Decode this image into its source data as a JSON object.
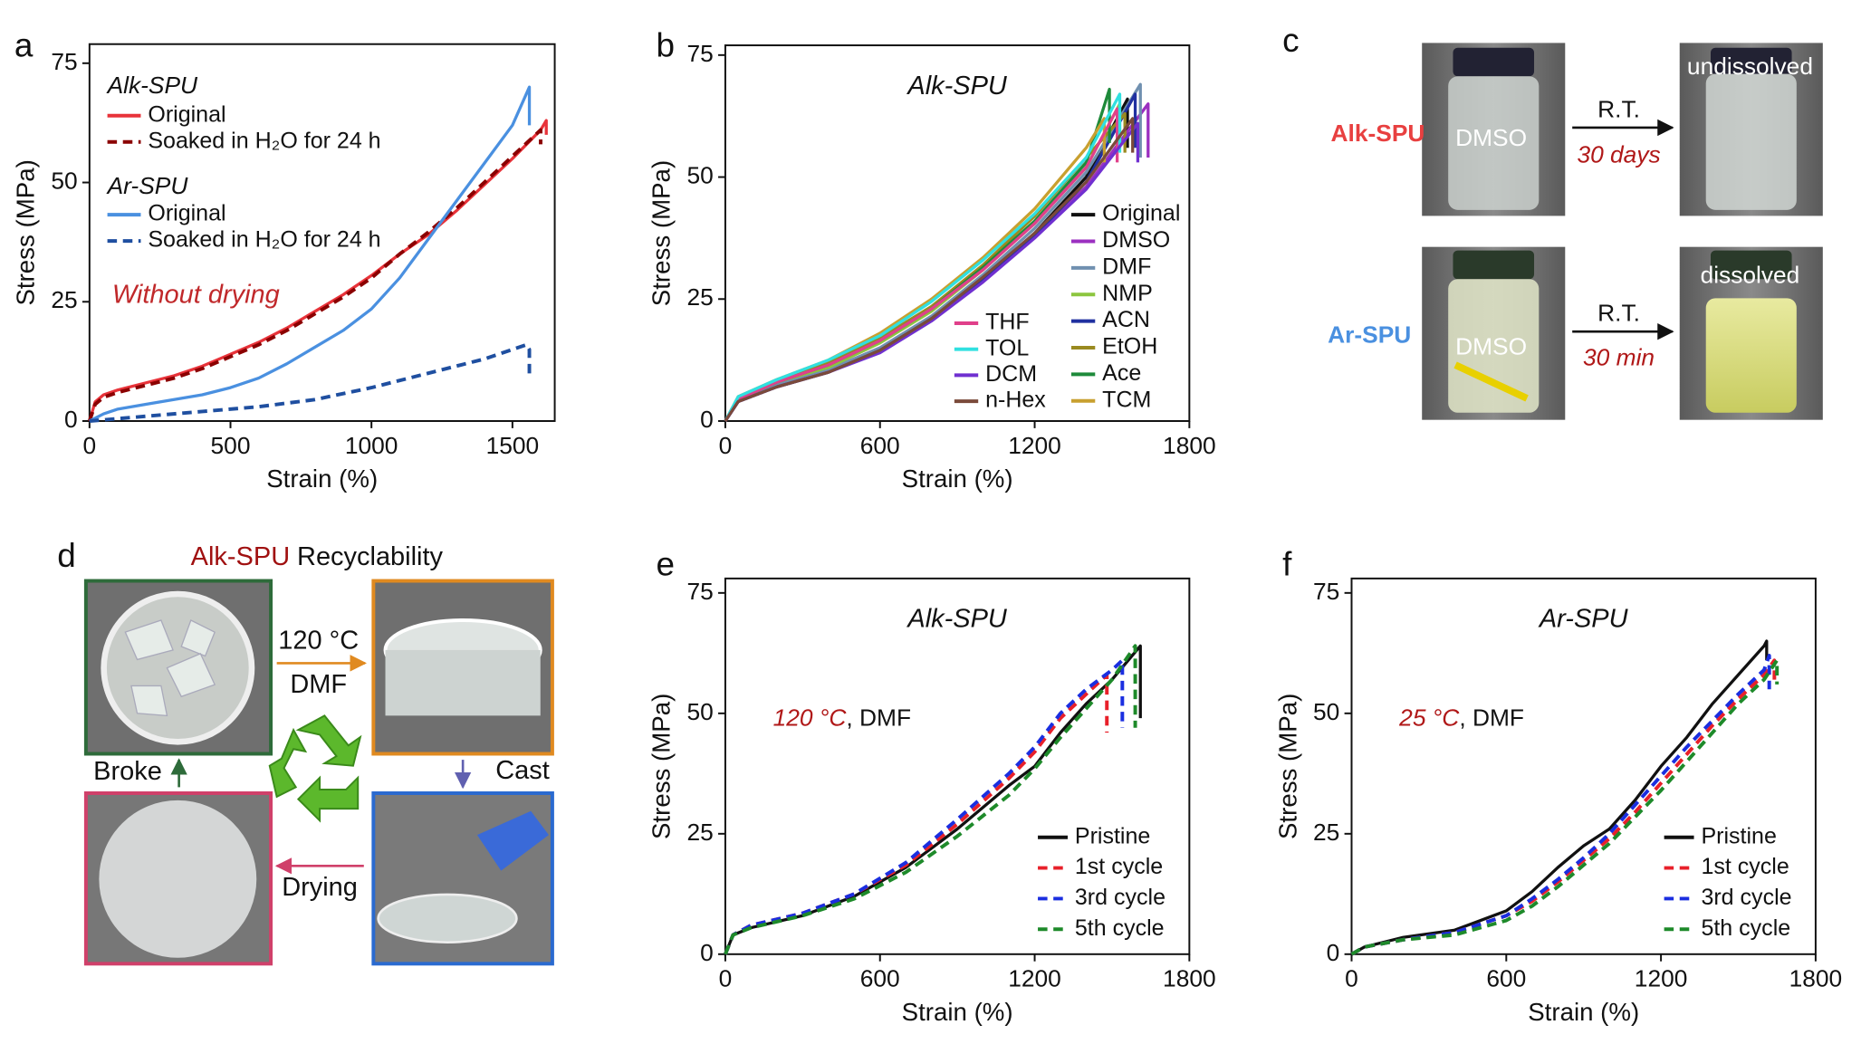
{
  "chart_data": [
    {
      "type": "line",
      "label": "a",
      "xlabel": "Strain (%)",
      "ylabel": "Stress (MPa)",
      "xlim": [
        0,
        1650
      ],
      "ylim": [
        0,
        79
      ],
      "xticks": [
        0,
        500,
        1000,
        1500
      ],
      "yticks": [
        0,
        25,
        50,
        75
      ],
      "legend_groups": [
        "Alk-SPU",
        "Ar-SPU"
      ],
      "annotation": "Without drying",
      "series": [
        {
          "name": "Original",
          "group": "Alk-SPU",
          "color": "#e8333a",
          "linestyle": "solid",
          "x": [
            0,
            20,
            50,
            100,
            200,
            300,
            400,
            500,
            600,
            700,
            800,
            900,
            1000,
            1100,
            1200,
            1300,
            1400,
            1500,
            1600,
            1620,
            1620
          ],
          "values": [
            0,
            4,
            5.5,
            6.5,
            8,
            9.5,
            11.5,
            14,
            16.5,
            19.5,
            23,
            26.5,
            30.5,
            35,
            39,
            44,
            49.5,
            55,
            61,
            63,
            60
          ]
        },
        {
          "name": "Soaked in H₂O for 24 h",
          "group": "Alk-SPU",
          "color": "#8b0000",
          "linestyle": "dashed",
          "x": [
            0,
            20,
            50,
            100,
            200,
            300,
            400,
            500,
            600,
            700,
            800,
            900,
            1000,
            1100,
            1200,
            1300,
            1400,
            1500,
            1600,
            1600
          ],
          "values": [
            0,
            3.5,
            5,
            6,
            7.5,
            9,
            11,
            13.5,
            16,
            19,
            22.5,
            26,
            30,
            35,
            39.5,
            44.5,
            50,
            55.5,
            61,
            58
          ]
        },
        {
          "name": "Original",
          "group": "Ar-SPU",
          "color": "#4a90e0",
          "linestyle": "solid",
          "x": [
            0,
            50,
            100,
            200,
            300,
            400,
            500,
            600,
            700,
            800,
            900,
            1000,
            1100,
            1200,
            1300,
            1400,
            1500,
            1560,
            1560
          ],
          "values": [
            0,
            1.5,
            2.5,
            3.5,
            4.5,
            5.5,
            7,
            9,
            12,
            15.5,
            19,
            23.5,
            30,
            38,
            46,
            54,
            62,
            70,
            62
          ]
        },
        {
          "name": "Soaked in H₂O for 24 h",
          "group": "Ar-SPU",
          "color": "#1f4fa0",
          "linestyle": "dashed",
          "x": [
            0,
            200,
            400,
            600,
            800,
            1000,
            1200,
            1400,
            1550,
            1560,
            1560
          ],
          "values": [
            0,
            1,
            2,
            3,
            4.5,
            7,
            10,
            13,
            16,
            15,
            9
          ]
        }
      ]
    },
    {
      "type": "line",
      "label": "b",
      "title": "Alk-SPU",
      "xlabel": "Strain (%)",
      "ylabel": "Stress (MPa)",
      "xlim": [
        0,
        1800
      ],
      "ylim": [
        0,
        77
      ],
      "xticks": [
        0,
        600,
        1200,
        1800
      ],
      "yticks": [
        0,
        25,
        50,
        75
      ],
      "series": [
        {
          "name": "Original",
          "color": "#111111",
          "linestyle": "solid",
          "x": [
            0,
            50,
            200,
            400,
            600,
            800,
            1000,
            1200,
            1400,
            1560,
            1560
          ],
          "values": [
            0,
            4,
            7,
            10,
            14.5,
            21,
            29,
            38.5,
            50,
            66,
            56
          ]
        },
        {
          "name": "DMSO",
          "color": "#9b30c0",
          "linestyle": "solid",
          "x": [
            0,
            50,
            200,
            400,
            600,
            800,
            1000,
            1200,
            1400,
            1640,
            1640
          ],
          "values": [
            0,
            4,
            7.5,
            10.5,
            15,
            21.5,
            29.5,
            38,
            48,
            65,
            54
          ]
        },
        {
          "name": "DMF",
          "color": "#7090b0",
          "linestyle": "solid",
          "x": [
            0,
            50,
            200,
            400,
            600,
            800,
            1000,
            1200,
            1400,
            1610,
            1610
          ],
          "values": [
            0,
            4.5,
            7.5,
            10.5,
            15,
            21.5,
            30,
            39.5,
            51,
            69,
            54
          ]
        },
        {
          "name": "NMP",
          "color": "#8cc63f",
          "linestyle": "solid",
          "x": [
            0,
            50,
            200,
            400,
            600,
            800,
            1000,
            1200,
            1400,
            1530,
            1530
          ],
          "values": [
            0,
            4.5,
            8,
            11,
            16,
            22.5,
            31,
            40.5,
            52,
            65,
            56
          ]
        },
        {
          "name": "ACN",
          "color": "#2030a0",
          "linestyle": "solid",
          "x": [
            0,
            50,
            200,
            400,
            600,
            800,
            1000,
            1200,
            1400,
            1590,
            1590
          ],
          "values": [
            0,
            4,
            7,
            10,
            14.5,
            21,
            29,
            38,
            49,
            67,
            56
          ]
        },
        {
          "name": "EtOH",
          "color": "#9a8a20",
          "linestyle": "solid",
          "x": [
            0,
            50,
            200,
            400,
            600,
            800,
            1000,
            1200,
            1400,
            1550,
            1550
          ],
          "values": [
            0,
            4.5,
            8,
            12,
            17,
            23.5,
            32,
            42,
            54,
            63,
            55
          ]
        },
        {
          "name": "Ace",
          "color": "#1e8a3a",
          "linestyle": "solid",
          "x": [
            0,
            50,
            200,
            400,
            600,
            800,
            1000,
            1200,
            1400,
            1490,
            1490
          ],
          "values": [
            0,
            4.5,
            8,
            11.5,
            16.5,
            23,
            31.5,
            41,
            53,
            68,
            57
          ]
        },
        {
          "name": "TCM",
          "color": "#c8a030",
          "linestyle": "solid",
          "x": [
            0,
            50,
            200,
            400,
            600,
            800,
            1000,
            1200,
            1400,
            1470,
            1470
          ],
          "values": [
            0,
            5,
            8.5,
            12.5,
            18,
            25,
            33.5,
            43.5,
            56,
            62,
            53
          ]
        },
        {
          "name": "THF",
          "color": "#e0408a",
          "linestyle": "solid",
          "x": [
            0,
            50,
            200,
            400,
            600,
            800,
            1000,
            1200,
            1400,
            1520,
            1520
          ],
          "values": [
            0,
            4.5,
            8,
            11.5,
            16.5,
            23,
            31,
            40.5,
            52,
            64,
            53
          ]
        },
        {
          "name": "TOL",
          "color": "#30e0e0",
          "linestyle": "solid",
          "x": [
            0,
            50,
            200,
            400,
            600,
            800,
            1000,
            1200,
            1400,
            1530,
            1530
          ],
          "values": [
            0,
            5,
            8.5,
            12.5,
            17.5,
            24.5,
            33,
            42.5,
            54,
            67,
            55
          ]
        },
        {
          "name": "DCM",
          "color": "#7030d0",
          "linestyle": "solid",
          "x": [
            0,
            50,
            200,
            400,
            600,
            800,
            1000,
            1200,
            1400,
            1600,
            1600
          ],
          "values": [
            0,
            4,
            7,
            10,
            14,
            20.5,
            28.5,
            37.5,
            47.5,
            61,
            53
          ]
        },
        {
          "name": "n-Hex",
          "color": "#7a4a3a",
          "linestyle": "solid",
          "x": [
            0,
            50,
            200,
            400,
            600,
            800,
            1000,
            1200,
            1400,
            1580,
            1580
          ],
          "values": [
            0,
            4,
            7,
            10,
            14.5,
            21,
            29.5,
            38.5,
            49,
            62,
            55
          ]
        }
      ]
    },
    {
      "type": "line",
      "label": "e",
      "title": "Alk-SPU",
      "xlabel": "Strain (%)",
      "ylabel": "Stress (MPa)",
      "xlim": [
        0,
        1800
      ],
      "ylim": [
        0,
        78
      ],
      "xticks": [
        0,
        600,
        1200,
        1800
      ],
      "yticks": [
        0,
        25,
        50,
        75
      ],
      "annotation": [
        "120 °C",
        ", DMF"
      ],
      "series": [
        {
          "name": "Pristine",
          "color": "#111111",
          "linestyle": "solid",
          "x": [
            0,
            30,
            100,
            300,
            500,
            700,
            900,
            1100,
            1200,
            1300,
            1400,
            1500,
            1610,
            1610
          ],
          "values": [
            0,
            4,
            5.5,
            8,
            12,
            18,
            26,
            35,
            39,
            46,
            52,
            57,
            64,
            49
          ]
        },
        {
          "name": "1st cycle",
          "color": "#e8202a",
          "linestyle": "dashed",
          "x": [
            0,
            30,
            100,
            300,
            500,
            700,
            900,
            1100,
            1200,
            1300,
            1400,
            1480,
            1480
          ],
          "values": [
            0,
            4,
            6,
            8.5,
            12.5,
            18.5,
            27,
            36.5,
            42,
            49,
            54,
            58,
            46
          ]
        },
        {
          "name": "3rd cycle",
          "color": "#1a2ee0",
          "linestyle": "dashed",
          "x": [
            0,
            30,
            100,
            300,
            500,
            700,
            900,
            1100,
            1200,
            1300,
            1400,
            1500,
            1540,
            1540
          ],
          "values": [
            0,
            4,
            6,
            8.5,
            12.5,
            19,
            28,
            37.5,
            43,
            50,
            55,
            59,
            61,
            47
          ]
        },
        {
          "name": "5th cycle",
          "color": "#1e8a2a",
          "linestyle": "dashed",
          "x": [
            0,
            30,
            100,
            300,
            500,
            700,
            900,
            1100,
            1200,
            1300,
            1400,
            1500,
            1590,
            1590
          ],
          "values": [
            0,
            4,
            5.5,
            8,
            11.5,
            17,
            24.5,
            33,
            38.5,
            45,
            51,
            57,
            64,
            47
          ]
        }
      ]
    },
    {
      "type": "line",
      "label": "f",
      "title": "Ar-SPU",
      "xlabel": "Strain (%)",
      "ylabel": "Stress (MPa)",
      "xlim": [
        0,
        1800
      ],
      "ylim": [
        0,
        78
      ],
      "xticks": [
        0,
        600,
        1200,
        1800
      ],
      "yticks": [
        0,
        25,
        50,
        75
      ],
      "annotation": [
        "25 °C",
        ", DMF"
      ],
      "series": [
        {
          "name": "Pristine",
          "color": "#111111",
          "linestyle": "solid",
          "x": [
            0,
            50,
            200,
            400,
            600,
            700,
            800,
            900,
            1000,
            1100,
            1200,
            1300,
            1400,
            1500,
            1600,
            1610,
            1610
          ],
          "values": [
            0,
            1.5,
            3.5,
            5,
            9,
            13,
            18,
            22.5,
            26,
            32,
            39,
            45,
            52,
            58,
            64,
            65,
            61
          ]
        },
        {
          "name": "1st cycle",
          "color": "#e8202a",
          "linestyle": "dashed",
          "x": [
            0,
            50,
            200,
            400,
            600,
            700,
            800,
            900,
            1000,
            1100,
            1200,
            1300,
            1400,
            1500,
            1600,
            1640,
            1640
          ],
          "values": [
            0,
            1.5,
            3,
            4.5,
            8,
            11,
            15,
            19.5,
            24,
            29.5,
            35.5,
            41.5,
            47.5,
            53,
            58,
            61,
            57
          ]
        },
        {
          "name": "3rd cycle",
          "color": "#1a2ee0",
          "linestyle": "dashed",
          "x": [
            0,
            50,
            200,
            400,
            600,
            700,
            800,
            900,
            1000,
            1100,
            1200,
            1300,
            1400,
            1500,
            1600,
            1620,
            1620
          ],
          "values": [
            0,
            1.5,
            3,
            4.5,
            8,
            11.5,
            15.5,
            20,
            25,
            31,
            37,
            43,
            48.5,
            54,
            59,
            62,
            55
          ]
        },
        {
          "name": "5th cycle",
          "color": "#1e8a2a",
          "linestyle": "dashed",
          "x": [
            0,
            50,
            200,
            400,
            600,
            700,
            800,
            900,
            1000,
            1100,
            1200,
            1300,
            1400,
            1500,
            1600,
            1650,
            1650
          ],
          "values": [
            0,
            1.5,
            3,
            4,
            7,
            10,
            14,
            18.5,
            23,
            28.5,
            34,
            40,
            46,
            52,
            57,
            61,
            56
          ]
        }
      ]
    }
  ],
  "panel_c": {
    "label": "c",
    "rows": [
      {
        "name": "Alk-SPU",
        "solvent": "DMSO",
        "condition": "R.T.",
        "time": "30 days",
        "result": "undissolved"
      },
      {
        "name": "Ar-SPU",
        "solvent": "DMSO",
        "condition": "R.T.",
        "time": "30 min",
        "result": "dissolved"
      }
    ]
  },
  "panel_d": {
    "label": "d",
    "title": [
      "Alk-SPU",
      "Recyclability"
    ],
    "heat": "120 °C",
    "solvent": "DMF",
    "cast": "Cast",
    "drying": "Drying",
    "broke": "Broke"
  }
}
